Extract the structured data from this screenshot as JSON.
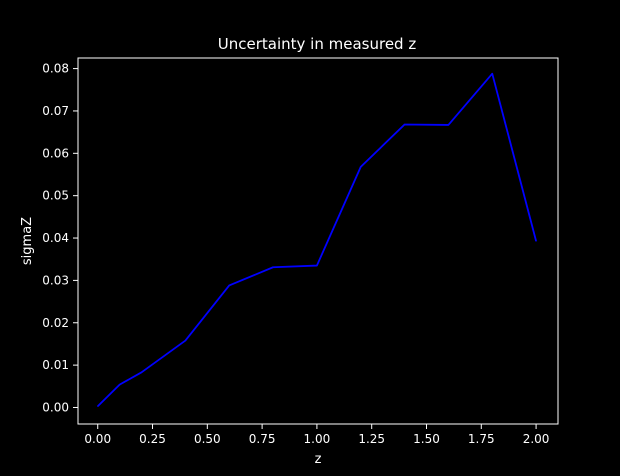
{
  "chart_data": {
    "type": "line",
    "title": "Uncertainty in measured z",
    "xlabel": "z",
    "ylabel": "sigmaZ",
    "xlim": [
      -0.09,
      2.1
    ],
    "ylim": [
      -0.0039,
      0.0825
    ],
    "x_ticks": [
      0.0,
      0.25,
      0.5,
      0.75,
      1.0,
      1.25,
      1.5,
      1.75,
      2.0
    ],
    "x_tick_labels": [
      "0.00",
      "0.25",
      "0.50",
      "0.75",
      "1.00",
      "1.25",
      "1.50",
      "1.75",
      "2.00"
    ],
    "y_ticks": [
      0.0,
      0.01,
      0.02,
      0.03,
      0.04,
      0.05,
      0.06,
      0.07,
      0.08
    ],
    "y_tick_labels": [
      "0.00",
      "0.01",
      "0.02",
      "0.03",
      "0.04",
      "0.05",
      "0.06",
      "0.07",
      "0.08"
    ],
    "grid": false,
    "background": "#000000",
    "foreground": "#ffffff",
    "series": [
      {
        "color": "#0000ff",
        "x": [
          0.0,
          0.1,
          0.2,
          0.4,
          0.6,
          0.8,
          1.0,
          1.2,
          1.4,
          1.6,
          1.8,
          2.0
        ],
        "y": [
          0.0003,
          0.0054,
          0.0083,
          0.0158,
          0.0288,
          0.0331,
          0.0335,
          0.0568,
          0.0668,
          0.0667,
          0.0788,
          0.0393
        ]
      }
    ]
  }
}
